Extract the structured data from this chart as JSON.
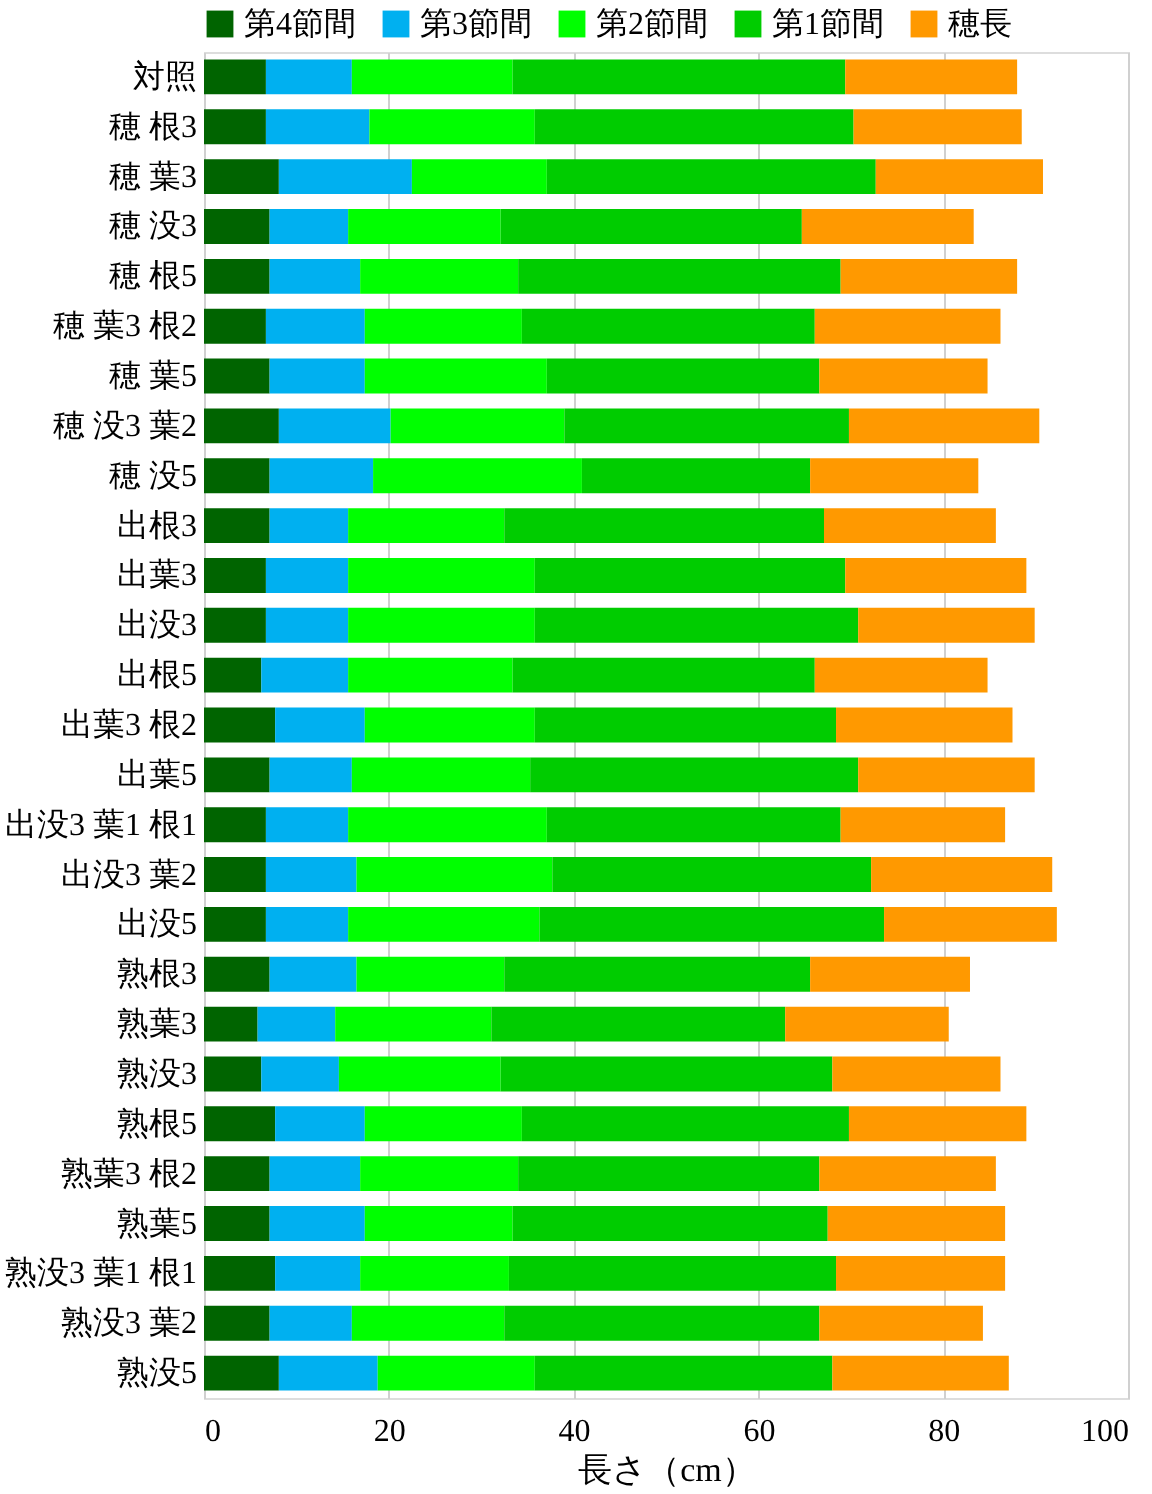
{
  "chart_data": {
    "type": "bar",
    "orientation": "horizontal",
    "stacked": true,
    "xlabel": "長さ（cm）",
    "categories": [
      "対照",
      "穂 根3",
      "穂 葉3",
      "穂 没3",
      "穂 根5",
      "穂 葉3 根2",
      "穂 葉5",
      "穂 没3 葉2",
      "穂 没5",
      "出根3",
      "出葉3",
      "出没3",
      "出根5",
      "出葉3 根2",
      "出葉5",
      "出没3 葉1 根1",
      "出没3 葉2",
      "出没5",
      "熟根3",
      "熟葉3",
      "熟没3",
      "熟根5",
      "熟葉3 根2",
      "熟葉5",
      "熟没3 葉1 根1",
      "熟没3 葉2",
      "熟没5"
    ],
    "series": [
      {
        "name": "第4節間",
        "color": "#006400",
        "values": [
          6.7,
          6.7,
          8.1,
          7.1,
          7.1,
          6.7,
          7.1,
          8.1,
          7.1,
          7.1,
          6.7,
          6.7,
          6.2,
          7.7,
          7.1,
          6.7,
          6.7,
          6.7,
          7.1,
          5.8,
          6.2,
          7.7,
          7.1,
          7.1,
          7.7,
          7.1,
          8.1
        ]
      },
      {
        "name": "第3節間",
        "color": "#00b0f0",
        "values": [
          9.3,
          11.2,
          14.4,
          8.5,
          9.8,
          10.7,
          10.3,
          12.1,
          11.2,
          8.5,
          8.9,
          8.9,
          9.4,
          9.7,
          8.9,
          8.9,
          9.8,
          8.9,
          9.4,
          8.4,
          8.4,
          9.7,
          9.8,
          10.3,
          9.2,
          8.9,
          10.7
        ]
      },
      {
        "name": "第2節間",
        "color": "#00ff00",
        "values": [
          17.4,
          17.9,
          14.6,
          16.5,
          17.1,
          17.0,
          19.7,
          18.8,
          22.6,
          16.9,
          20.2,
          20.2,
          17.8,
          18.4,
          19.3,
          21.5,
          21.2,
          20.7,
          16.0,
          16.9,
          17.5,
          17.0,
          17.1,
          16.0,
          16.1,
          16.5,
          17.0
        ]
      },
      {
        "name": "第1節間",
        "color": "#00cc00",
        "values": [
          36.0,
          34.5,
          35.6,
          32.6,
          34.9,
          31.7,
          29.5,
          30.8,
          24.7,
          34.6,
          33.6,
          35.0,
          32.7,
          32.6,
          35.5,
          31.8,
          34.5,
          37.3,
          33.1,
          31.8,
          35.9,
          35.4,
          32.6,
          34.1,
          35.4,
          34.1,
          32.2
        ]
      },
      {
        "name": "穂長",
        "color": "#ff9900",
        "values": [
          18.6,
          18.2,
          18.1,
          18.6,
          19.1,
          20.1,
          18.2,
          20.6,
          18.2,
          18.6,
          19.6,
          19.1,
          18.7,
          19.1,
          19.1,
          17.8,
          19.6,
          18.7,
          17.3,
          17.7,
          18.2,
          19.2,
          19.1,
          19.2,
          18.3,
          17.7,
          19.1
        ]
      }
    ],
    "xlim": [
      0,
      100
    ],
    "xticks": [
      0,
      20,
      40,
      60,
      80,
      100
    ],
    "grid": "x",
    "legend": "top"
  }
}
